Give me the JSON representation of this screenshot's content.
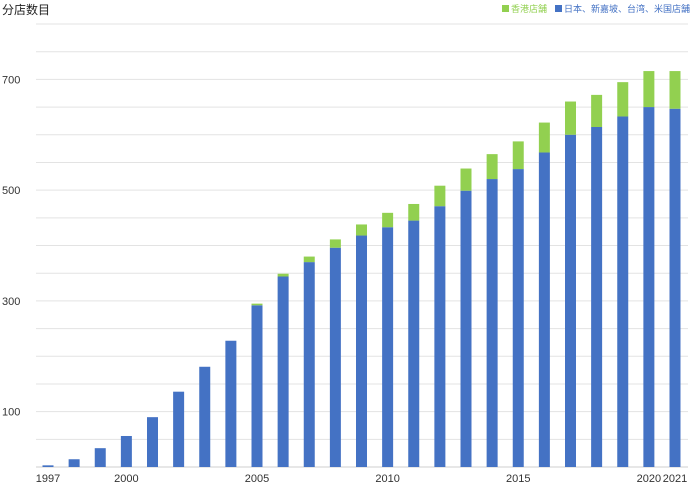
{
  "chart_data": {
    "type": "bar",
    "stacked": true,
    "title": "分店数目",
    "x": [
      1997,
      1998,
      1999,
      2000,
      2001,
      2002,
      2003,
      2004,
      2005,
      2006,
      2007,
      2008,
      2009,
      2010,
      2011,
      2012,
      2013,
      2014,
      2015,
      2016,
      2017,
      2018,
      2019,
      2020,
      2021
    ],
    "x_tick_labels": [
      "1997",
      "2000",
      "2005",
      "2010",
      "2015",
      "2020",
      "2021"
    ],
    "x_tick_values": [
      1997,
      2000,
      2005,
      2010,
      2015,
      2020,
      2021
    ],
    "y_tick_labels": [
      "100",
      "300",
      "500",
      "700"
    ],
    "y_tick_values": [
      100,
      300,
      500,
      700
    ],
    "ylim": [
      0,
      800
    ],
    "grid": true,
    "legend_position": "top-right",
    "series": [
      {
        "name": "日本、新嘉坡、台湾、米国店舗",
        "color": "#4472c4",
        "values": [
          3,
          14,
          34,
          56,
          90,
          136,
          181,
          228,
          292,
          344,
          370,
          396,
          418,
          433,
          445,
          471,
          499,
          520,
          538,
          568,
          600,
          614,
          633,
          650,
          647
        ]
      },
      {
        "name": "香港店舗",
        "color": "#92d050",
        "values": [
          0,
          0,
          0,
          0,
          0,
          0,
          0,
          0,
          3,
          5,
          10,
          15,
          20,
          26,
          30,
          37,
          40,
          45,
          50,
          54,
          60,
          58,
          62,
          65,
          68
        ]
      }
    ]
  }
}
